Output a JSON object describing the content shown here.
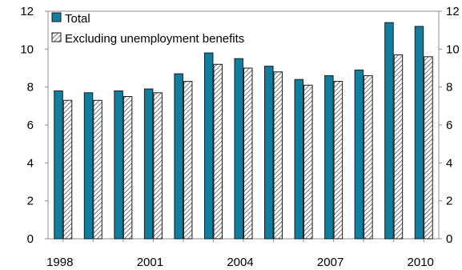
{
  "chart_data": {
    "type": "bar",
    "title": "",
    "xlabel": "",
    "ylabel": "",
    "ylim": [
      0,
      12
    ],
    "y_ticks": [
      0,
      2,
      4,
      6,
      8,
      10,
      12
    ],
    "y_tick_labels_left": [
      "0",
      "2",
      "4",
      "6",
      "8",
      "10",
      "12"
    ],
    "y_tick_labels_right": [
      "0",
      "2",
      "4",
      "6",
      "8",
      "10",
      "12"
    ],
    "categories": [
      "1998",
      "1999",
      "2000",
      "2001",
      "2002",
      "2003",
      "2004",
      "2005",
      "2006",
      "2007",
      "2008",
      "2009",
      "2010"
    ],
    "x_tick_labels": [
      "1998",
      "",
      "",
      "2001",
      "",
      "",
      "2004",
      "",
      "",
      "2007",
      "",
      "",
      "2010"
    ],
    "grid": false,
    "legend_position": "top-left",
    "series": [
      {
        "name": "Total",
        "color": "#0e7f9e",
        "pattern": "solid",
        "values": [
          7.8,
          7.7,
          7.8,
          7.9,
          8.7,
          9.8,
          9.5,
          9.1,
          8.4,
          8.6,
          8.9,
          11.4,
          11.2
        ]
      },
      {
        "name": "Excluding unemployment benefits",
        "color": "#9a9a9a",
        "pattern": "diagonal-hatch",
        "values": [
          7.3,
          7.3,
          7.5,
          7.7,
          8.3,
          9.2,
          9.0,
          8.8,
          8.1,
          8.3,
          8.6,
          9.7,
          9.6
        ]
      }
    ]
  }
}
